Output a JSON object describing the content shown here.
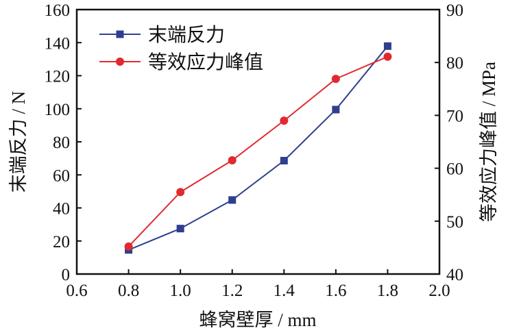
{
  "chart_data": {
    "type": "line",
    "xlabel": "蜂窝壁厚 / mm",
    "ylabel": "末端反力 / N",
    "y2label": "等效应力峰值 / MPa",
    "xlim": [
      0.6,
      2.0
    ],
    "ylim": [
      0,
      160
    ],
    "y2lim": [
      40,
      90
    ],
    "xticks": [
      "0.6",
      "0.8",
      "1.0",
      "1.2",
      "1.4",
      "1.6",
      "1.8",
      "2.0"
    ],
    "yticks": [
      "0",
      "20",
      "40",
      "60",
      "80",
      "100",
      "120",
      "140",
      "160"
    ],
    "y2ticks": [
      "40",
      "50",
      "60",
      "70",
      "80",
      "90"
    ],
    "grid": false,
    "legend_position": "top-left",
    "x": [
      0.8,
      1.0,
      1.2,
      1.4,
      1.6,
      1.8
    ],
    "series": [
      {
        "name": "末端反力",
        "axis": "left",
        "marker": "square",
        "color": "#2e3f8f",
        "values": [
          14.6,
          27.5,
          44.8,
          68.6,
          99.5,
          137.9
        ]
      },
      {
        "name": "等效应力峰值",
        "axis": "right",
        "marker": "circle",
        "color": "#e02a2f",
        "values": [
          45.2,
          55.5,
          61.5,
          69.0,
          76.9,
          81.1
        ]
      }
    ]
  }
}
